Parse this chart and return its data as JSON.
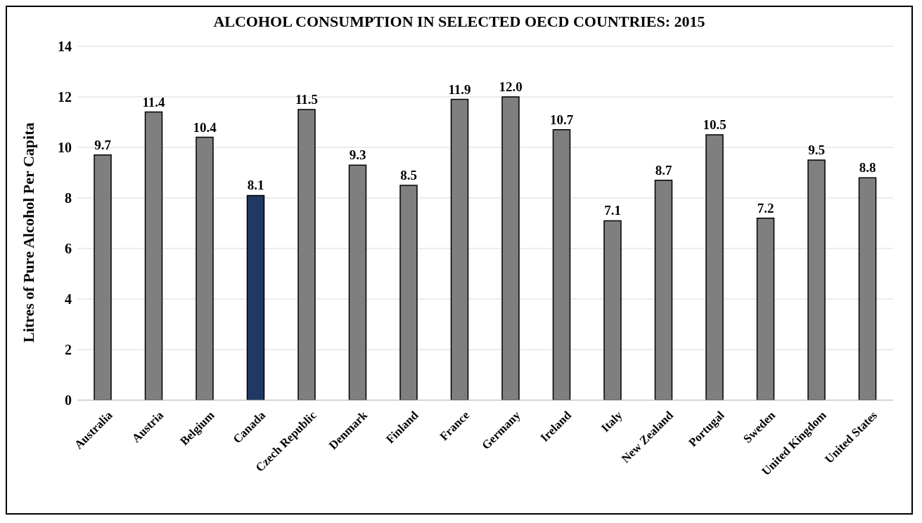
{
  "chart_data": {
    "type": "bar",
    "title": "ALCOHOL CONSUMPTION IN SELECTED OECD COUNTRIES: 2015",
    "ylabel": "Litres of Pure Alcohol Per Capita",
    "categories": [
      "Australia",
      "Austria",
      "Belgium",
      "Canada",
      "Czech Republic",
      "Denmark",
      "Finland",
      "France",
      "Germany",
      "Ireland",
      "Italy",
      "New Zealand",
      "Portugal",
      "Sweden",
      "United Kingdom",
      "United States"
    ],
    "values": [
      9.7,
      11.4,
      10.4,
      8.1,
      11.5,
      9.3,
      8.5,
      11.9,
      12.0,
      10.7,
      7.1,
      8.7,
      10.5,
      7.2,
      9.5,
      8.8
    ],
    "value_labels": [
      "9.7",
      "11.4",
      "10.4",
      "8.1",
      "11.5",
      "9.3",
      "8.5",
      "11.9",
      "12.0",
      "10.7",
      "7.1",
      "8.7",
      "10.5",
      "7.2",
      "9.5",
      "8.8"
    ],
    "colors": [
      "#7f7f7f",
      "#7f7f7f",
      "#7f7f7f",
      "#1f3864",
      "#7f7f7f",
      "#7f7f7f",
      "#7f7f7f",
      "#7f7f7f",
      "#7f7f7f",
      "#7f7f7f",
      "#7f7f7f",
      "#7f7f7f",
      "#7f7f7f",
      "#7f7f7f",
      "#7f7f7f",
      "#7f7f7f"
    ],
    "ylim": [
      0,
      14
    ],
    "yticks": [
      0,
      2,
      4,
      6,
      8,
      10,
      12,
      14
    ],
    "grid": "y",
    "legend": false
  }
}
